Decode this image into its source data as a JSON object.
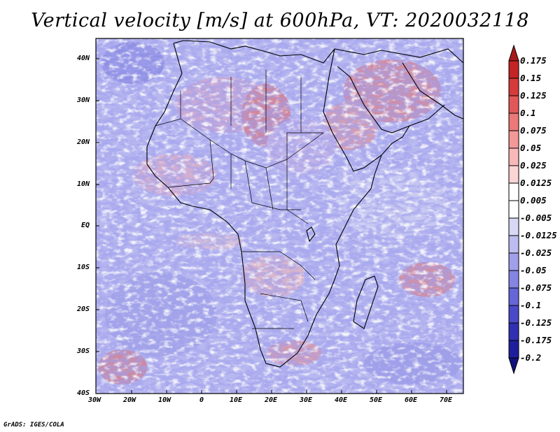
{
  "title": "Vertical velocity [m/s] at 600hPa, VT: 2020032118",
  "footer": "GrADS: IGES/COLA",
  "latitude_labels": [
    "40N",
    "30N",
    "20N",
    "10N",
    "EQ",
    "10S",
    "20S",
    "30S",
    "40S"
  ],
  "longitude_labels": [
    "30W",
    "20W",
    "10W",
    "0",
    "10E",
    "20E",
    "30E",
    "40E",
    "50E",
    "60E",
    "70E"
  ],
  "colorbar": {
    "labels": [
      "0.175",
      "0.15",
      "0.125",
      "0.1",
      "0.075",
      "0.05",
      "0.025",
      "0.0125",
      "0.005",
      "-0.005",
      "-0.0125",
      "-0.025",
      "-0.05",
      "-0.075",
      "-0.1",
      "-0.125",
      "-0.175",
      "-0.2"
    ],
    "colors": [
      "#a81a1a",
      "#c42424",
      "#d63a3a",
      "#e25858",
      "#ec7878",
      "#f29898",
      "#f7b8b8",
      "#fbd4d4",
      "#ffffff",
      "#ffffff",
      "#d8d8f6",
      "#bcbcf0",
      "#a0a0ea",
      "#8484e2",
      "#6666d8",
      "#4a4ac8",
      "#3030b4",
      "#1e1e9c",
      "#12127c"
    ]
  },
  "map": {
    "land_bias": "mixed red/blue",
    "ocean_bias": "predominantly weak negative (blue)"
  }
}
